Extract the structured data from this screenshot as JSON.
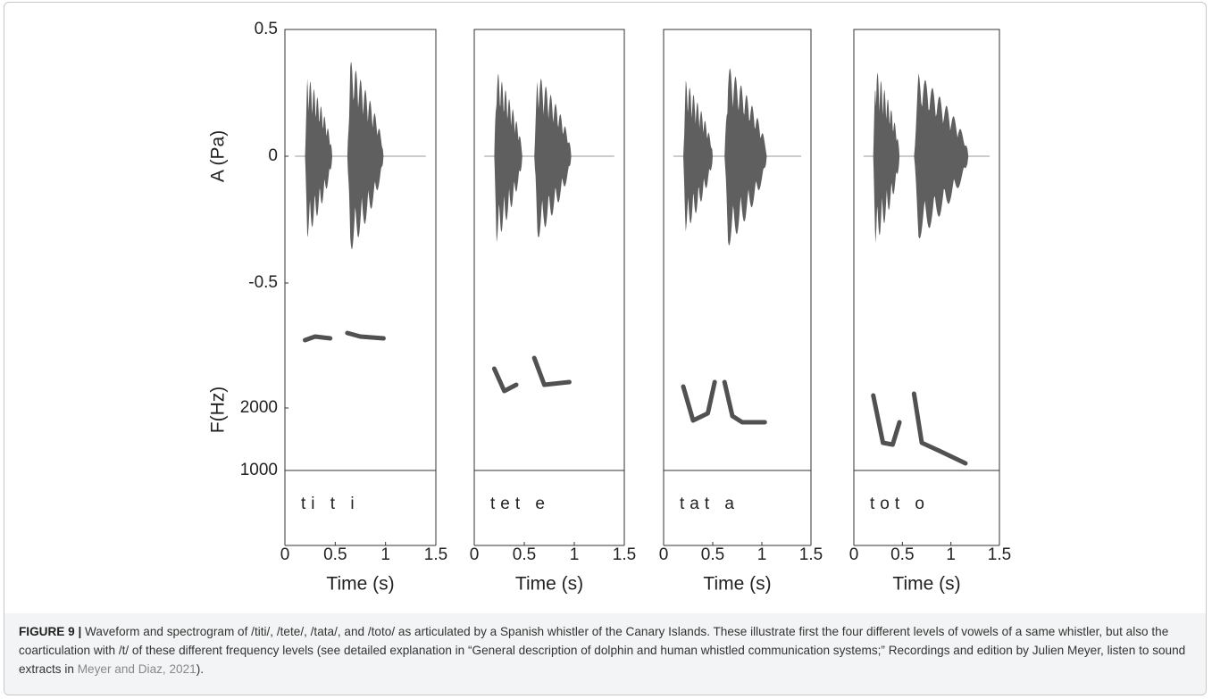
{
  "figure": {
    "panels": [
      {
        "label": "ti t i"
      },
      {
        "label": "tet e"
      },
      {
        "label": "tat a"
      },
      {
        "label": "tot o"
      }
    ],
    "waveform_axis": {
      "label": "A (Pa)",
      "ticks": [
        0.5,
        0,
        -0.5
      ]
    },
    "spectrogram_axis": {
      "label": "F(Hz)",
      "ticks": [
        2000,
        1000
      ]
    },
    "time_axis": {
      "label": "Time (s)",
      "ticks": [
        0,
        0.5,
        1,
        1.5
      ]
    },
    "caption": {
      "label": "FIGURE 9 |",
      "text": " Waveform and spectrogram of /titi/, /tete/, /tata/, and /toto/ as articulated by a Spanish whistler of the Canary Islands. These illustrate first the four different levels of vowels of a same whistler, but also the coarticulation with /t/ of these different frequency levels (see detailed explanation in “General description of dolphin and human whistled communication systems;” Recordings and edition by Julien Meyer, listen to sound extracts in ",
      "link": "Meyer and Diaz, 2021",
      "end": ")."
    }
  }
}
